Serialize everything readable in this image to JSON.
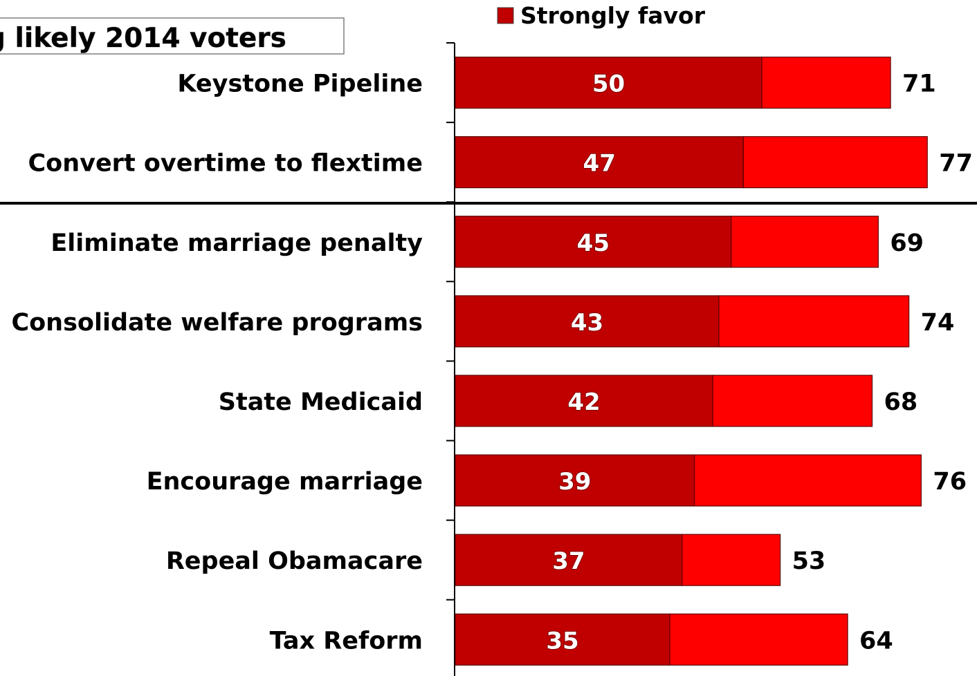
{
  "chart_data": {
    "type": "bar",
    "orientation": "horizontal",
    "stacked": true,
    "title": "g likely 2014 voters",
    "legend": {
      "placement": "top",
      "entries": [
        "Strongly favor"
      ]
    },
    "categories": [
      "Keystone Pipeline",
      "Convert overtime to flextime",
      "Eliminate marriage penalty",
      "Consolidate welfare programs",
      "State Medicaid",
      "Encourage marriage",
      "Repeal Obamacare",
      "Tax Reform"
    ],
    "series": [
      {
        "name": "Strongly favor",
        "color": "#c00000",
        "values": [
          50,
          47,
          45,
          43,
          42,
          39,
          37,
          35
        ]
      },
      {
        "color": "#ff0000",
        "values": [
          21,
          30,
          24,
          31,
          26,
          37,
          16,
          29
        ]
      }
    ],
    "totals": [
      71,
      77,
      69,
      74,
      68,
      76,
      53,
      64
    ],
    "xlim": [
      0,
      85
    ],
    "grid": false,
    "separator_after_category_index": 1
  }
}
